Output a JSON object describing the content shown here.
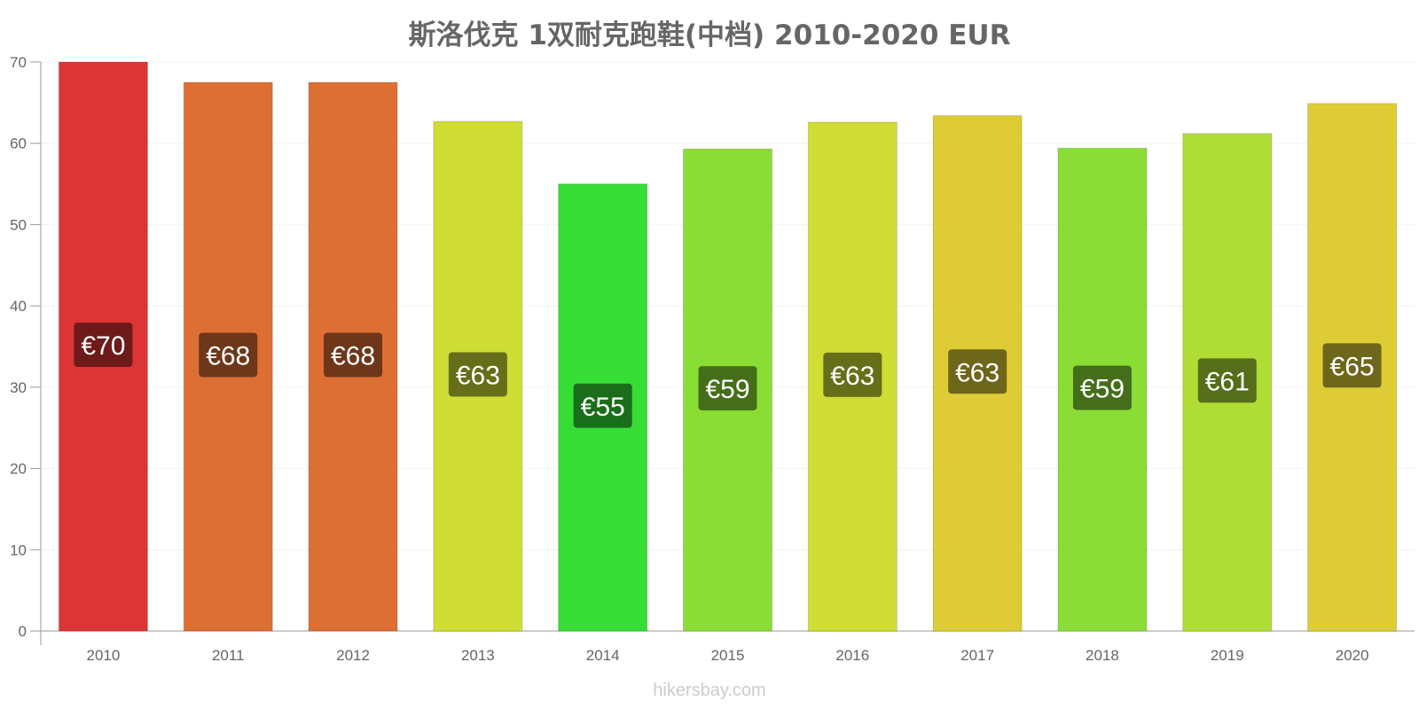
{
  "chart_data": {
    "type": "bar",
    "title": "斯洛伐克 1双耐克跑鞋(中档) 2010-2020 EUR",
    "xlabel": "",
    "ylabel": "",
    "categories": [
      "2010",
      "2011",
      "2012",
      "2013",
      "2014",
      "2015",
      "2016",
      "2017",
      "2018",
      "2019",
      "2020"
    ],
    "values": [
      70.0,
      67.5,
      67.5,
      62.7,
      55.0,
      59.3,
      62.6,
      63.4,
      59.4,
      61.2,
      64.9
    ],
    "data_labels": [
      "€70",
      "€68",
      "€68",
      "€63",
      "€55",
      "€59",
      "€63",
      "€63",
      "€59",
      "€61",
      "€65"
    ],
    "ylim": [
      0,
      70
    ],
    "yticks": [
      "0",
      "10",
      "20",
      "30",
      "40",
      "50",
      "60",
      "70"
    ],
    "grid": true,
    "legend": "none",
    "bar_colors": [
      "#db3535",
      "#dd6f35",
      "#dd6f35",
      "#cfdd35",
      "#35dd35",
      "#8add35",
      "#cfdd35",
      "#ddcc35",
      "#8add35",
      "#afdd35",
      "#ddcc35"
    ],
    "label_bg_colors": [
      "#6e1a1a",
      "#6e371a",
      "#6e371a",
      "#676e1a",
      "#1a6e1a",
      "#456e1a",
      "#676e1a",
      "#6e661a",
      "#456e1a",
      "#576e1a",
      "#6e661a"
    ]
  },
  "watermark": "hikersbay.com"
}
